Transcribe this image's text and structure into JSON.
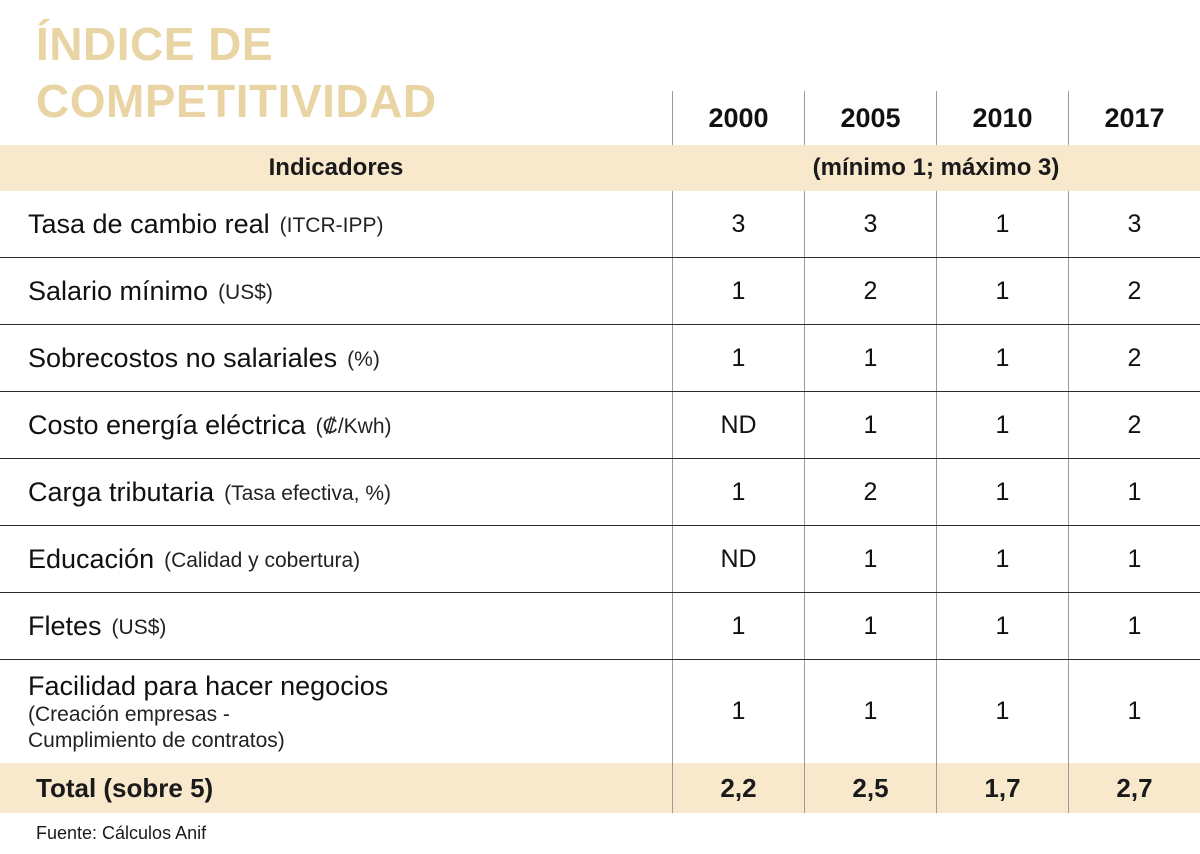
{
  "title": {
    "line1": "ÍNDICE DE",
    "line2": "COMPETITIVIDAD"
  },
  "columns": [
    "2000",
    "2005",
    "2010",
    "2017"
  ],
  "header": {
    "indicators_label": "Indicadores",
    "scale_note": "(mínimo 1; máximo 3)"
  },
  "rows": [
    {
      "name": "Tasa de cambio real",
      "detail": "(ITCR-IPP)",
      "values": [
        "3",
        "3",
        "1",
        "3"
      ]
    },
    {
      "name": "Salario mínimo",
      "detail": "(US$)",
      "values": [
        "1",
        "2",
        "1",
        "2"
      ]
    },
    {
      "name": "Sobrecostos no salariales",
      "detail": "(%)",
      "values": [
        "1",
        "1",
        "1",
        "2"
      ]
    },
    {
      "name": "Costo energía eléctrica",
      "detail": "(₡/Kwh)",
      "values": [
        "ND",
        "1",
        "1",
        "2"
      ]
    },
    {
      "name": "Carga tributaria",
      "detail": "(Tasa efectiva, %)",
      "values": [
        "1",
        "2",
        "1",
        "1"
      ]
    },
    {
      "name": "Educación",
      "detail": "(Calidad y cobertura)",
      "values": [
        "ND",
        "1",
        "1",
        "1"
      ]
    },
    {
      "name": "Fletes",
      "detail": "(US$)",
      "values": [
        "1",
        "1",
        "1",
        "1"
      ]
    },
    {
      "name": "Facilidad para hacer negocios",
      "detail": "(Creación empresas -",
      "detail2": "Cumplimiento de contratos)",
      "values": [
        "1",
        "1",
        "1",
        "1"
      ]
    }
  ],
  "total": {
    "label": "Total (sobre 5)",
    "values": [
      "2,2",
      "2,5",
      "1,7",
      "2,7"
    ]
  },
  "source": "Fuente: Cálculos Anif",
  "colors": {
    "accent_title": "#e9d4a3",
    "band_background": "#f8e8cc",
    "divider": "#9b9b9b",
    "row_line": "#2a2a2a"
  },
  "chart_data": {
    "type": "table",
    "title": "ÍNDICE DE COMPETITIVIDAD",
    "subtitle": "(mínimo 1; máximo 3)",
    "columns": [
      "Indicadores",
      "2000",
      "2005",
      "2010",
      "2017"
    ],
    "rows": [
      [
        "Tasa de cambio real (ITCR-IPP)",
        "3",
        "3",
        "1",
        "3"
      ],
      [
        "Salario mínimo (US$)",
        "1",
        "2",
        "1",
        "2"
      ],
      [
        "Sobrecostos no salariales (%)",
        "1",
        "1",
        "1",
        "2"
      ],
      [
        "Costo energía eléctrica (₡/Kwh)",
        "ND",
        "1",
        "1",
        "2"
      ],
      [
        "Carga tributaria (Tasa efectiva, %)",
        "1",
        "2",
        "1",
        "1"
      ],
      [
        "Educación (Calidad y cobertura)",
        "ND",
        "1",
        "1",
        "1"
      ],
      [
        "Fletes (US$)",
        "1",
        "1",
        "1",
        "1"
      ],
      [
        "Facilidad para hacer negocios (Creación empresas - Cumplimiento de contratos)",
        "1",
        "1",
        "1",
        "1"
      ],
      [
        "Total (sobre 5)",
        "2,2",
        "2,5",
        "1,7",
        "2,7"
      ]
    ],
    "source": "Fuente: Cálculos Anif",
    "layout": {
      "grid": "horizontal row separators + vertical column dividers",
      "legend": "none"
    }
  }
}
